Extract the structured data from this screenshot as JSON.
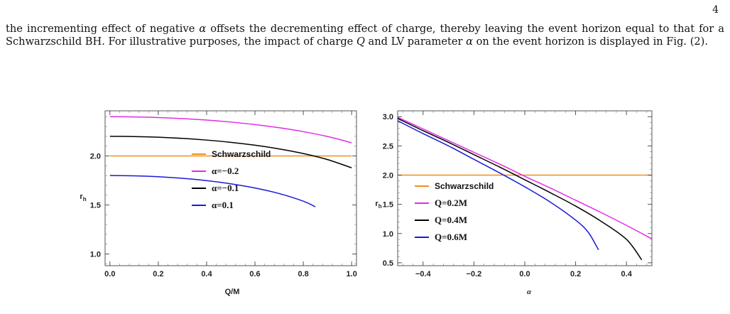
{
  "page": {
    "number": "4",
    "text_parts": [
      "the incrementing effect of negative ",
      "α",
      " offsets the decrementing effect of charge, thereby leaving the event horizon equal to that for a Schwarzschild BH. For illustrative purposes, the impact of charge ",
      "Q",
      " and LV parameter ",
      "α",
      " on the event horizon is displayed in Fig. (2)."
    ]
  },
  "colors": {
    "schwarzschild": "#F0901E",
    "magenta": "#E02DE6",
    "black": "#000000",
    "blue": "#1A1AD6"
  },
  "chart_data": [
    {
      "type": "line",
      "xlabel": "Q/M",
      "ylabel": "r_h",
      "xlim": [
        -0.02,
        1.02
      ],
      "ylim": [
        0.88,
        2.46
      ],
      "xticks": [
        0.0,
        0.2,
        0.4,
        0.6,
        0.8,
        1.0
      ],
      "xtick_labels": [
        "0.0",
        "0.2",
        "0.4",
        "0.6",
        "0.8",
        "1.0"
      ],
      "yticks": [
        1.0,
        1.5,
        2.0
      ],
      "ytick_labels": [
        "1.0",
        "1.5",
        "2.0"
      ],
      "legend_position": "center",
      "series": [
        {
          "name": "Schwarzschild",
          "color_key": "schwarzschild",
          "x": [
            0.0,
            1.0
          ],
          "y": [
            2.0,
            2.0
          ]
        },
        {
          "name": "α=−0.2",
          "color_key": "magenta",
          "x": [
            0.0,
            0.1,
            0.2,
            0.3,
            0.4,
            0.5,
            0.6,
            0.7,
            0.8,
            0.9,
            1.0
          ],
          "y": [
            2.4,
            2.3979,
            2.3916,
            2.3809,
            2.3656,
            2.3454,
            2.3197,
            2.2875,
            2.2476,
            2.1979,
            2.1345
          ]
        },
        {
          "name": "α=−0.1",
          "color_key": "black",
          "x": [
            0.0,
            0.1,
            0.2,
            0.3,
            0.4,
            0.5,
            0.6,
            0.7,
            0.8,
            0.9,
            1.0
          ],
          "y": [
            2.2,
            2.1977,
            2.1907,
            2.1788,
            2.1615,
            2.1386,
            2.1091,
            2.0717,
            2.0243,
            1.9628,
            1.8787
          ]
        },
        {
          "name": "α=0.1",
          "color_key": "blue",
          "x": [
            0.0,
            0.1,
            0.2,
            0.3,
            0.4,
            0.5,
            0.6,
            0.7,
            0.8,
            0.85
          ],
          "y": [
            1.8,
            1.7969,
            1.7875,
            1.7714,
            1.7478,
            1.7155,
            1.6727,
            1.616,
            1.538,
            1.4806
          ]
        }
      ]
    },
    {
      "type": "line",
      "xlabel": "α",
      "ylabel": "r_h",
      "xlim": [
        -0.5,
        0.5
      ],
      "ylim": [
        0.45,
        3.1
      ],
      "xticks": [
        -0.4,
        -0.2,
        0.0,
        0.2,
        0.4
      ],
      "xtick_labels": [
        "−0.4",
        "−0.2",
        "0.0",
        "0.2",
        "0.4"
      ],
      "yticks": [
        0.5,
        1.0,
        1.5,
        2.0,
        2.5,
        3.0
      ],
      "ytick_labels": [
        "0.5",
        "1.0",
        "1.5",
        "2.0",
        "2.5",
        "3.0"
      ],
      "legend_position": "lower-left",
      "series": [
        {
          "name": "Schwarzschild",
          "color_key": "schwarzschild",
          "x": [
            -0.5,
            0.5
          ],
          "y": [
            2.0,
            2.0
          ]
        },
        {
          "name": "Q=0.2M",
          "color_key": "magenta",
          "x": [
            -0.5,
            -0.4,
            -0.3,
            -0.2,
            -0.1,
            0.0,
            0.1,
            0.2,
            0.3,
            0.4,
            0.5
          ],
          "y": [
            2.99,
            2.79,
            2.59,
            2.39,
            2.19,
            1.98,
            1.78,
            1.57,
            1.36,
            1.14,
            0.91
          ]
        },
        {
          "name": "Q=0.4M",
          "color_key": "black",
          "x": [
            -0.5,
            -0.4,
            -0.3,
            -0.2,
            -0.1,
            0.0,
            0.1,
            0.2,
            0.3,
            0.4,
            0.46
          ],
          "y": [
            2.97,
            2.76,
            2.56,
            2.35,
            2.14,
            1.92,
            1.7,
            1.47,
            1.21,
            0.9,
            0.55
          ]
        },
        {
          "name": "Q=0.6M",
          "color_key": "blue",
          "x": [
            -0.5,
            -0.4,
            -0.3,
            -0.2,
            -0.1,
            0.0,
            0.1,
            0.2,
            0.25,
            0.29
          ],
          "y": [
            2.93,
            2.71,
            2.5,
            2.27,
            2.04,
            1.8,
            1.54,
            1.23,
            1.02,
            0.72
          ]
        }
      ]
    }
  ]
}
